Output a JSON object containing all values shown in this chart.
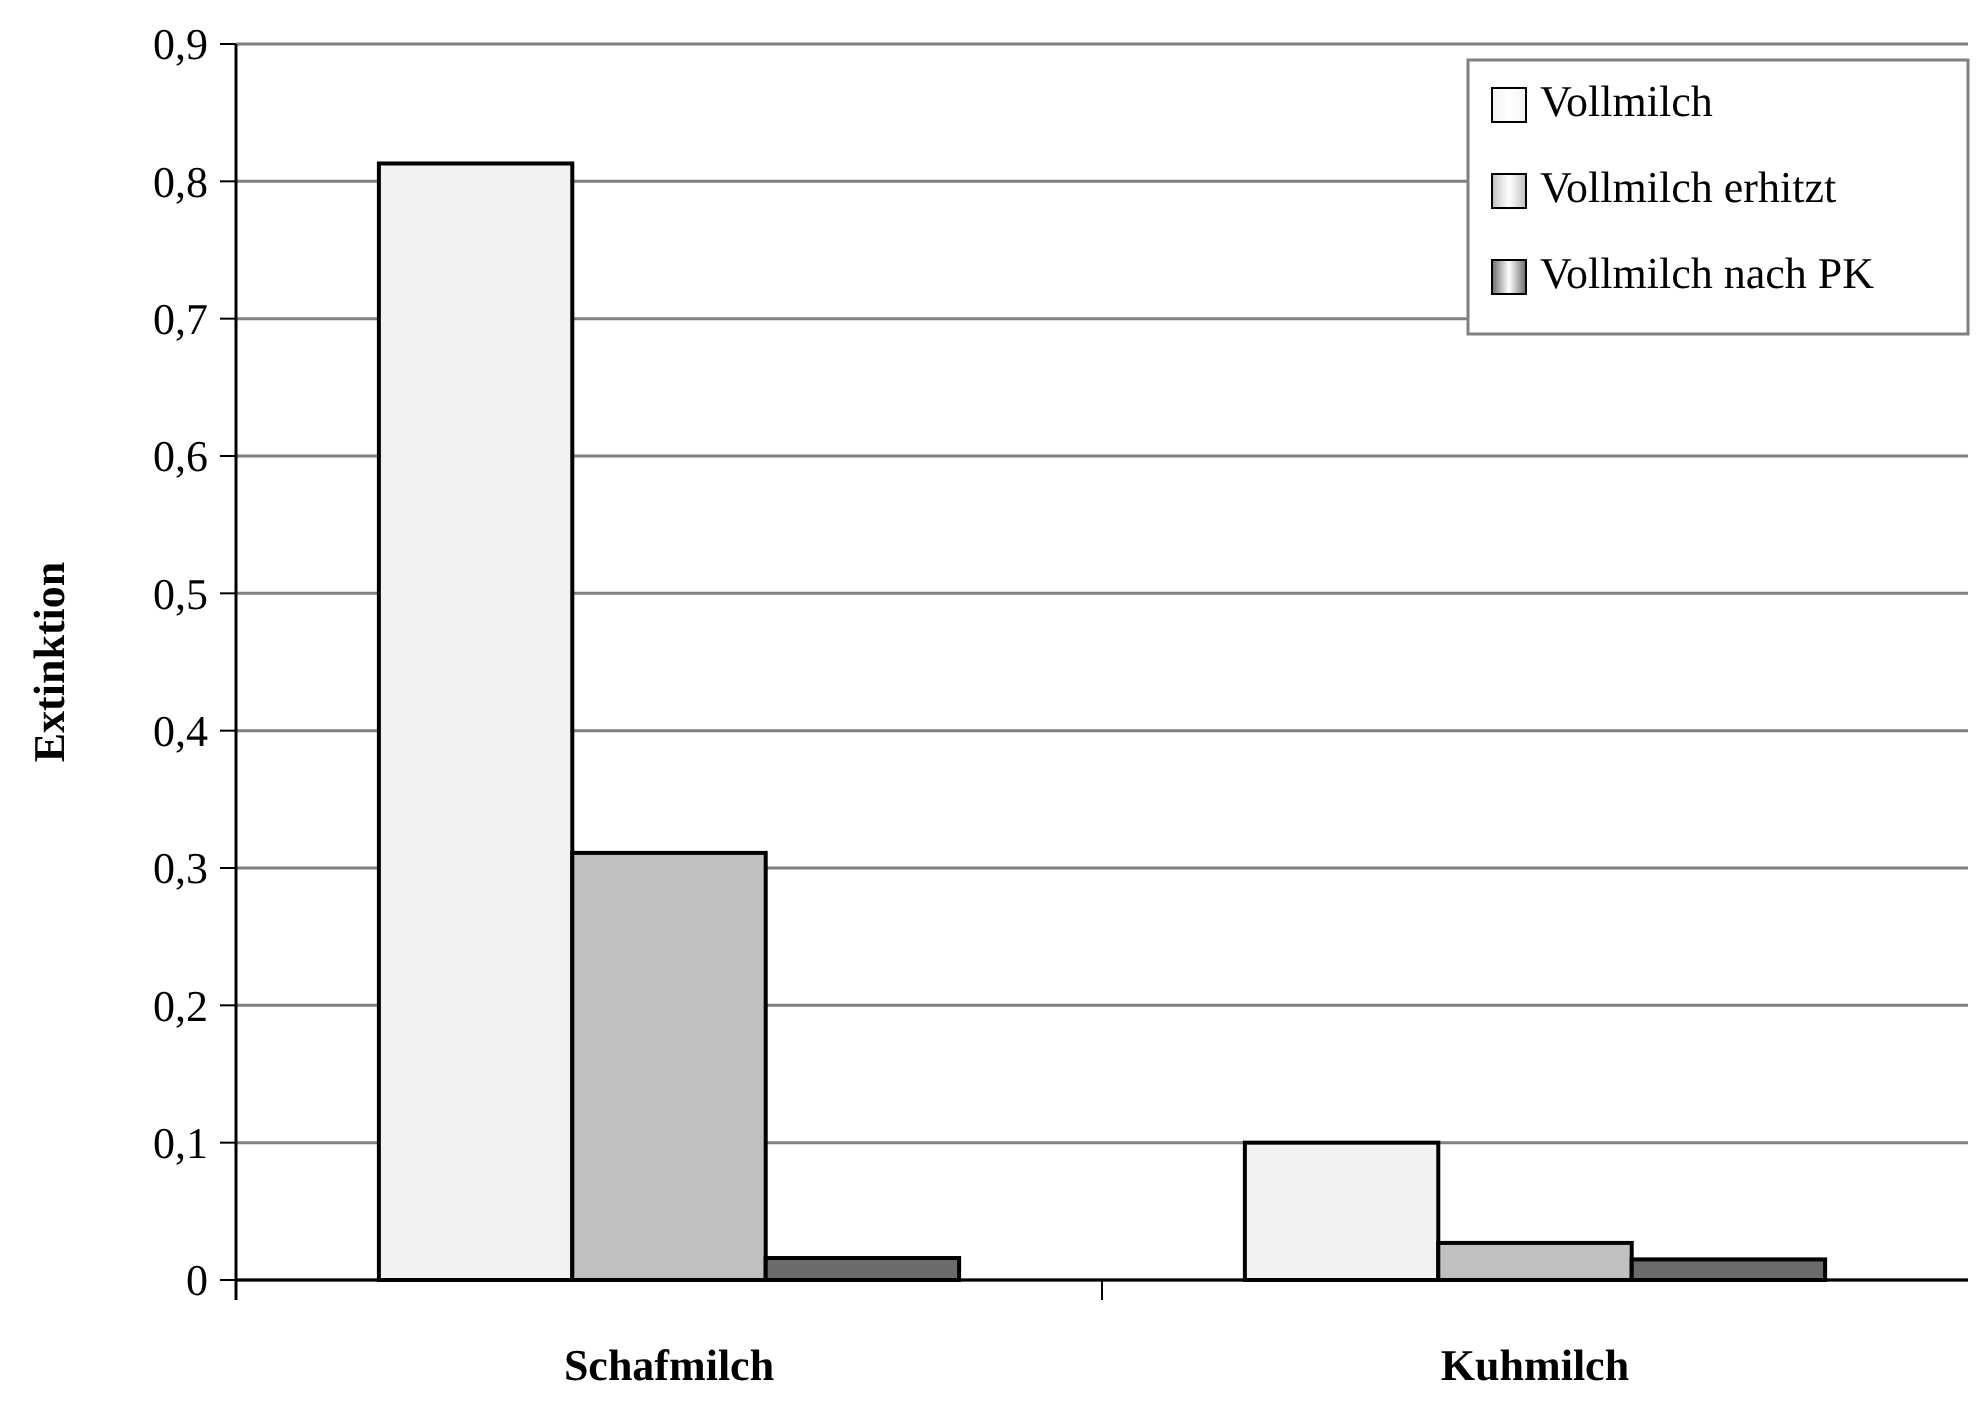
{
  "chart_data": {
    "type": "bar",
    "ylabel": "Extinktion",
    "categories": [
      "Schafmilch",
      "Kuhmilch"
    ],
    "series": [
      {
        "name": "Vollmilch",
        "color": "#f2f2f2",
        "values": [
          0.813,
          0.1
        ]
      },
      {
        "name": "Vollmilch erhitzt",
        "color": "#c0c0c0",
        "values": [
          0.311,
          0.027
        ]
      },
      {
        "name": "Vollmilch nach PK",
        "color": "#6b6b6b",
        "values": [
          0.016,
          0.015
        ]
      }
    ],
    "ylim": [
      0,
      0.9
    ],
    "yticks": [
      {
        "value": 0,
        "label": "0"
      },
      {
        "value": 0.1,
        "label": "0,1"
      },
      {
        "value": 0.2,
        "label": "0,2"
      },
      {
        "value": 0.3,
        "label": "0,3"
      },
      {
        "value": 0.4,
        "label": "0,4"
      },
      {
        "value": 0.5,
        "label": "0,5"
      },
      {
        "value": 0.6,
        "label": "0,6"
      },
      {
        "value": 0.7,
        "label": "0,7"
      },
      {
        "value": 0.8,
        "label": "0,8"
      },
      {
        "value": 0.9,
        "label": "0,9"
      }
    ],
    "grid": "y",
    "legend": "top right"
  }
}
